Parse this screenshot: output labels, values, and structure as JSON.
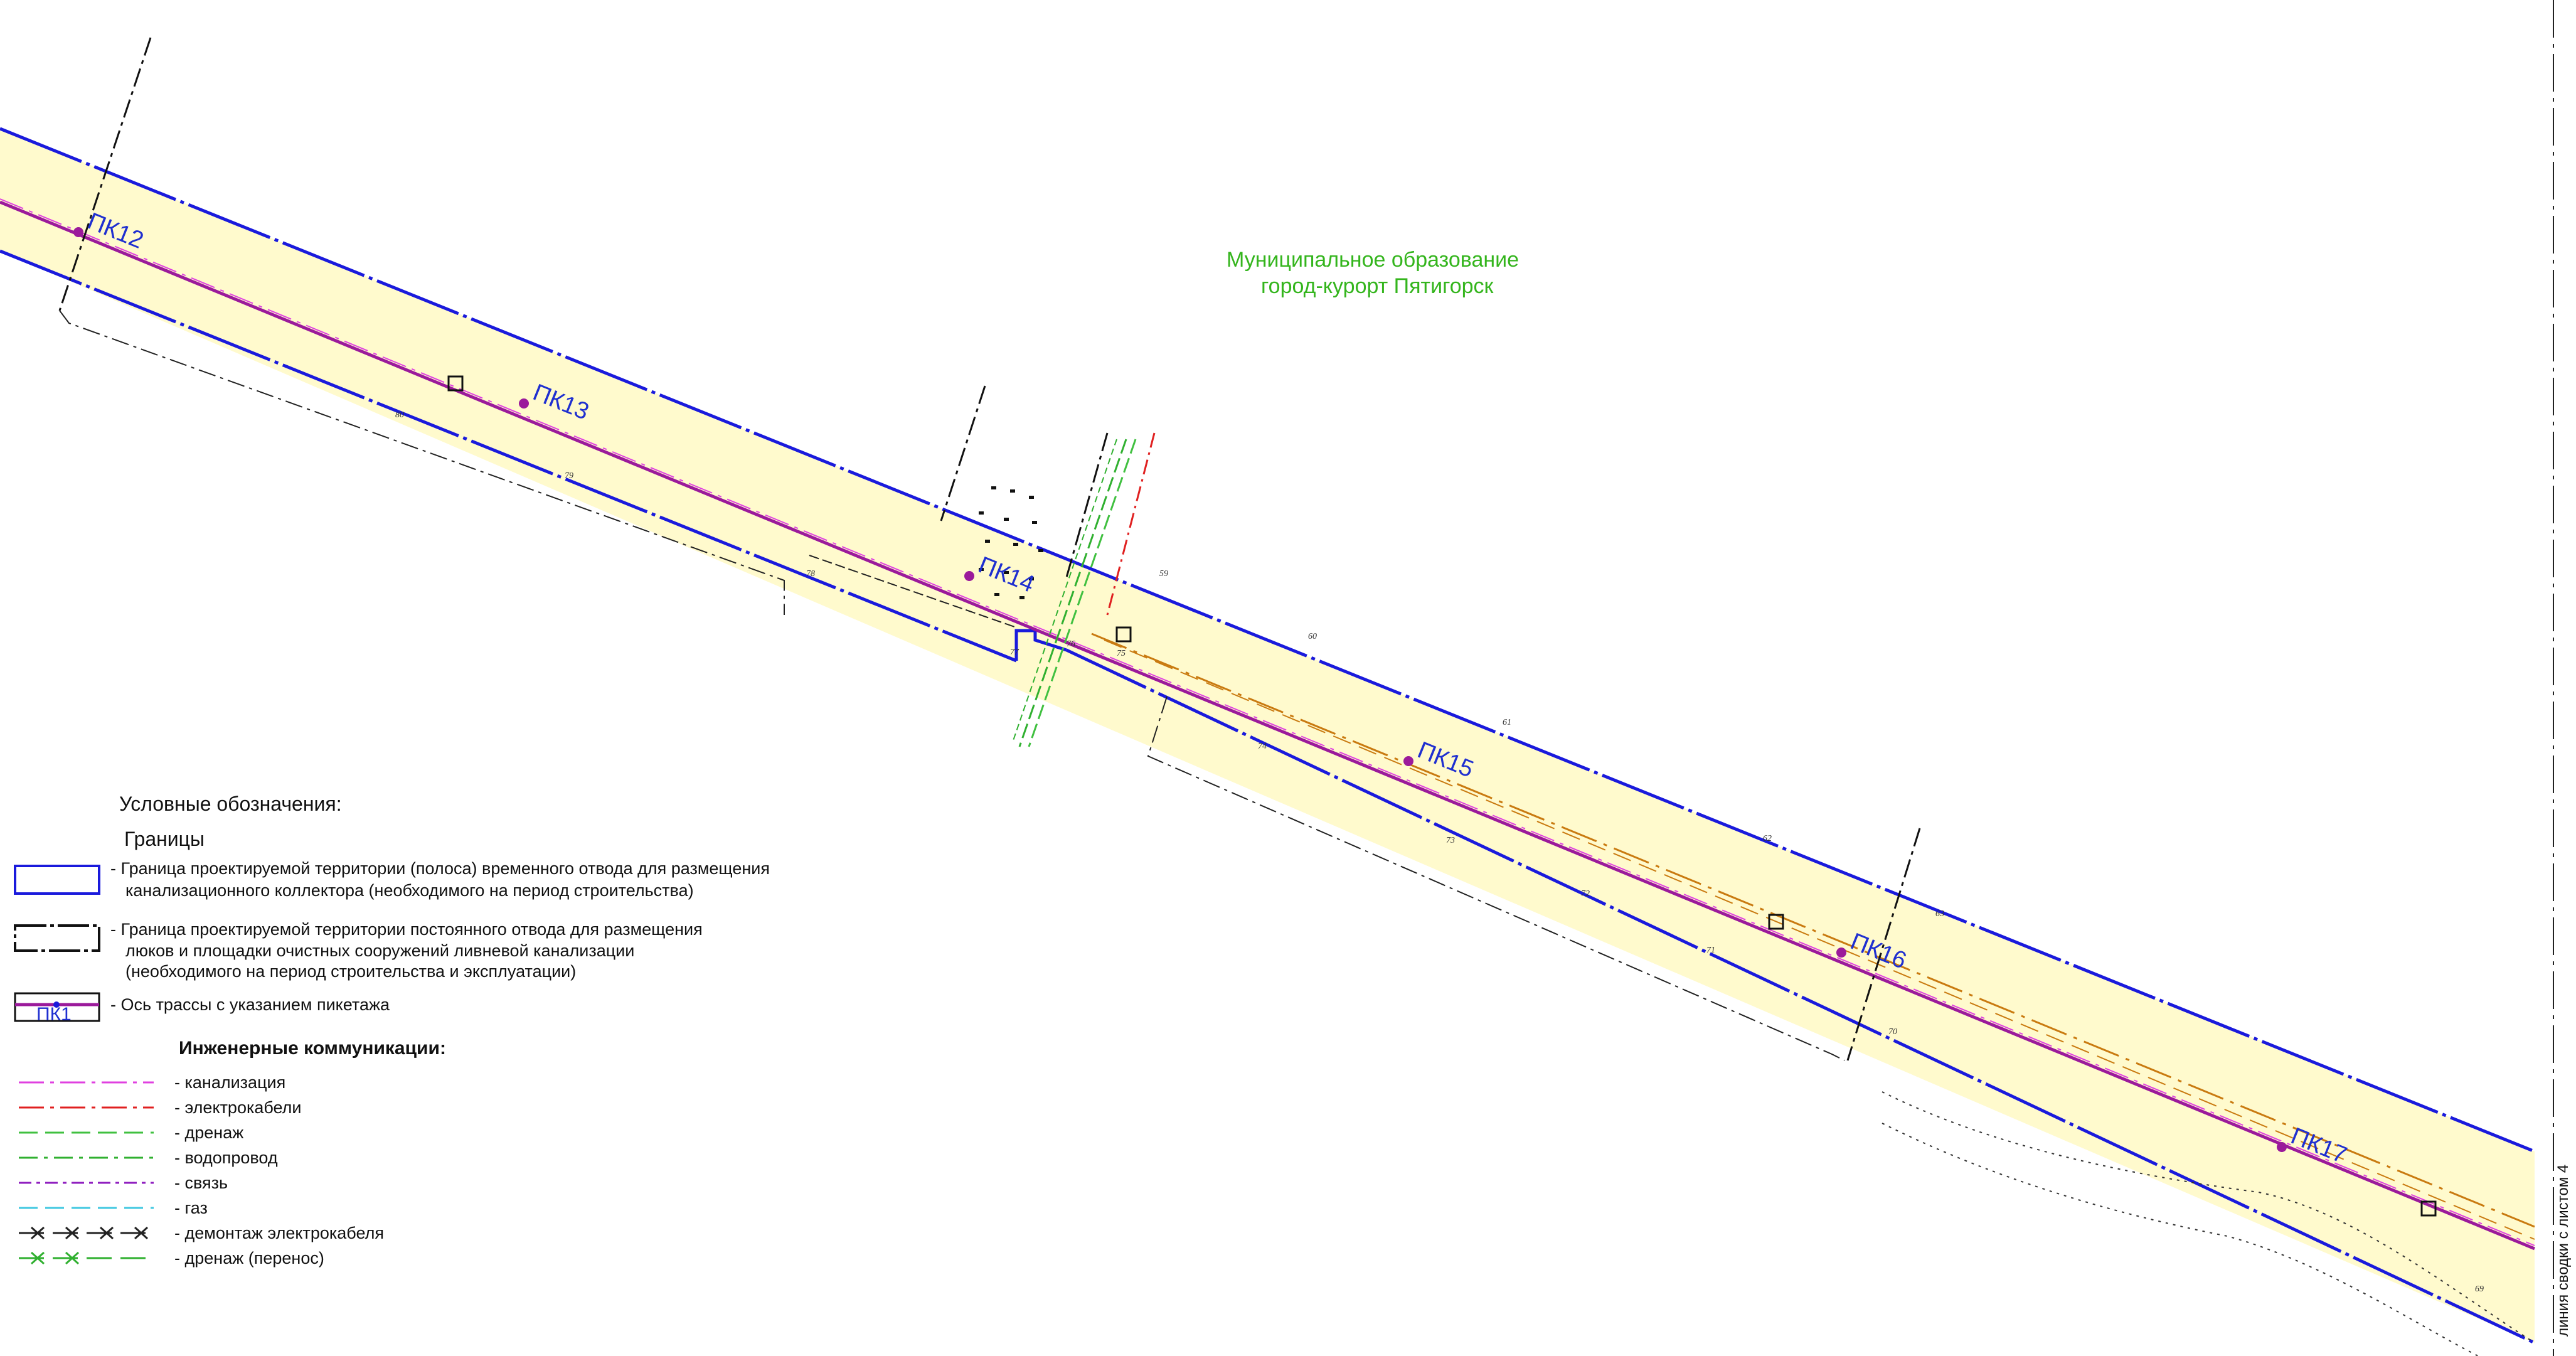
{
  "municipality": {
    "line1": "Муниципальное образование",
    "line2": "город-курорт Пятигорск",
    "color": "#34b51d"
  },
  "stations": [
    {
      "label": "ПК12"
    },
    {
      "label": "ПК13"
    },
    {
      "label": "ПК14"
    },
    {
      "label": "ПК15"
    },
    {
      "label": "ПК16"
    },
    {
      "label": "ПК17"
    }
  ],
  "boundary_numbers_top": [
    "59",
    "60",
    "61",
    "62",
    "63"
  ],
  "boundary_numbers_bottom": [
    "80",
    "79",
    "78",
    "77",
    "76",
    "75",
    "74",
    "73",
    "72",
    "71",
    "70",
    "69"
  ],
  "side_note": "линия сводки с листом 4",
  "legend": {
    "title": "Условные обозначения:",
    "boundaries_heading": "Границы",
    "items": [
      {
        "symbol": "blue-dash-box",
        "lines": [
          "- Граница проектируемой территории (полоса) временного отвода для размещения",
          "канализационного коллектора (необходимого на период строительства)"
        ]
      },
      {
        "symbol": "black-dash-box",
        "lines": [
          "- Граница проектируемой территории постоянного отвода для размещения",
          "люков и площадки очистных сооружений ливневой канализации",
          "(необходимого на период строительства и эксплуатации)"
        ]
      },
      {
        "symbol": "axis-box",
        "sample_label": "ПК1",
        "lines": [
          "- Ось трассы с указанием пикетажа"
        ]
      }
    ],
    "utilities_heading": "Инженерные коммуникации:",
    "utilities": [
      {
        "label": "- канализация",
        "color": "#e040e0",
        "icon": "sewer-line-icon"
      },
      {
        "label": "- электрокабели",
        "color": "#e02020",
        "icon": "power-cable-line-icon"
      },
      {
        "label": "- дренаж",
        "color": "#40c040",
        "icon": "drainage-line-icon"
      },
      {
        "label": "- водопровод",
        "color": "#30b030",
        "icon": "water-line-icon"
      },
      {
        "label": "- связь",
        "color": "#9020c0",
        "icon": "telecom-line-icon"
      },
      {
        "label": "- газ",
        "color": "#40c8e0",
        "icon": "gas-line-icon"
      },
      {
        "label": "- демонтаж электрокабеля",
        "color": "#222222",
        "icon": "cable-dismantle-line-icon"
      },
      {
        "label": "- дренаж (перенос)",
        "color": "#30b030",
        "icon": "drainage-relocation-line-icon"
      }
    ]
  },
  "colors": {
    "corridor_fill": "#fffacd",
    "boundary_blue": "#1a1adc",
    "axis": "#9b1a9b",
    "permanent_boundary": "#111111"
  }
}
